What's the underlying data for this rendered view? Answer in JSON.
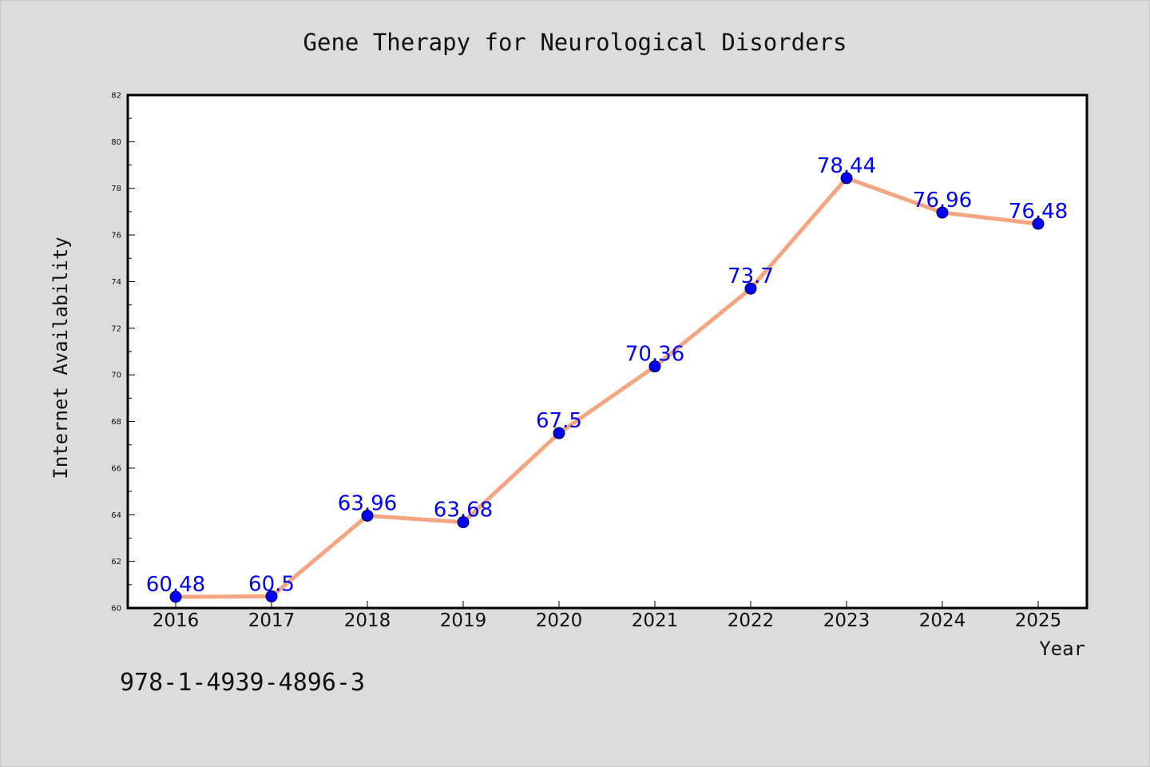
{
  "chart_data": {
    "type": "line",
    "title": "Gene Therapy for Neurological Disorders",
    "xlabel": "Year",
    "ylabel": "Internet Availability",
    "x": [
      "2016",
      "2017",
      "2018",
      "2019",
      "2020",
      "2021",
      "2022",
      "2023",
      "2024",
      "2025"
    ],
    "series": [
      {
        "values": [
          60.48,
          60.5,
          63.96,
          63.68,
          67.5,
          70.36,
          73.7,
          78.44,
          76.96,
          76.48
        ],
        "data_labels": [
          "60.48",
          "60.5",
          "63.96",
          "63.68",
          "67.5",
          "70.36",
          "73.7",
          "78.44",
          "76.96",
          "76.48"
        ],
        "line_color": "#f4a582",
        "marker_color": "#0000ff"
      }
    ],
    "ylim": [
      60,
      82
    ],
    "yticks": [
      "60",
      "62",
      "64",
      "66",
      "68",
      "70",
      "72",
      "74",
      "76",
      "78",
      "80",
      "82"
    ],
    "grid": false,
    "legend": "none",
    "annotation": "978-1-4939-4896-3"
  }
}
